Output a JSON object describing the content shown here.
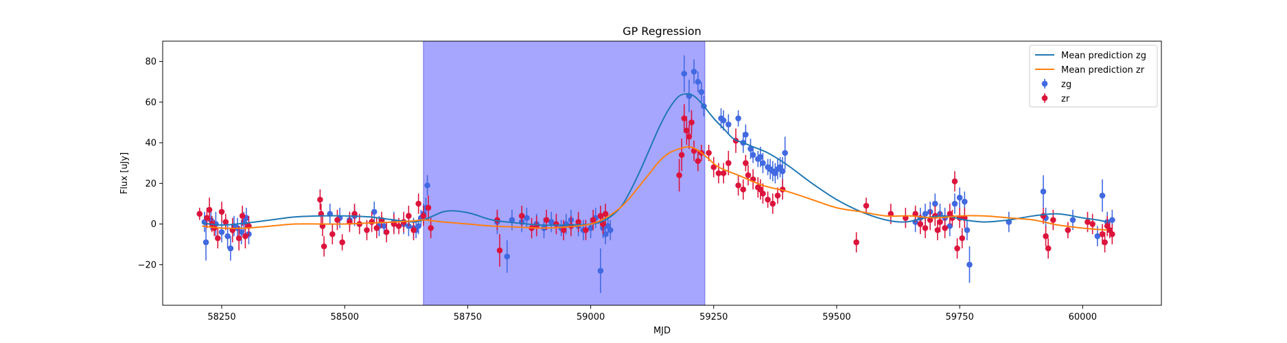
{
  "chart_data": {
    "type": "scatter",
    "title": "GP Regression",
    "xlabel": "MJD",
    "ylabel": "Flux [uJy]",
    "xlim": [
      58130,
      60160
    ],
    "ylim": [
      -40,
      90
    ],
    "xticks": [
      58250,
      58500,
      58750,
      59000,
      59250,
      59500,
      59750,
      60000
    ],
    "yticks": [
      -20,
      0,
      20,
      40,
      60,
      80
    ],
    "grid": false,
    "legend_position": "top-right",
    "shaded_span": {
      "x0": 58660,
      "x1": 59232,
      "color": "#a6a6ff"
    },
    "series": [
      {
        "name": "Mean prediction zg",
        "kind": "line",
        "color": "#1f77b4",
        "x": [
          58210,
          58250,
          58300,
          58350,
          58400,
          58450,
          58500,
          58550,
          58600,
          58640,
          58660,
          58680,
          58700,
          58720,
          58740,
          58760,
          58800,
          58850,
          58900,
          58950,
          59000,
          59030,
          59060,
          59080,
          59100,
          59120,
          59140,
          59160,
          59180,
          59200,
          59215,
          59230,
          59250,
          59270,
          59290,
          59310,
          59330,
          59360,
          59400,
          59450,
          59500,
          59550,
          59600,
          59640,
          59680,
          59720,
          59760,
          59800,
          59850,
          59900,
          59950,
          60000,
          60030,
          60050
        ],
        "y": [
          0.5,
          -0.5,
          0.5,
          2,
          3.5,
          4,
          4,
          3.5,
          2,
          1,
          2,
          4,
          6,
          6.5,
          6,
          5,
          2,
          0.5,
          -0.5,
          -0.5,
          0,
          2,
          8,
          16,
          26,
          37,
          48,
          57,
          63,
          64,
          62,
          58,
          52,
          47,
          42,
          40,
          38,
          35,
          29,
          20,
          12,
          6,
          2,
          1,
          3,
          4,
          2,
          1,
          2,
          4,
          5,
          3,
          2,
          1
        ]
      },
      {
        "name": "Mean prediction zr",
        "kind": "line",
        "color": "#ff7f0e",
        "x": [
          58210,
          58250,
          58300,
          58350,
          58400,
          58450,
          58500,
          58550,
          58600,
          58640,
          58660,
          58700,
          58750,
          58800,
          58850,
          58900,
          58950,
          59000,
          59030,
          59060,
          59080,
          59100,
          59120,
          59140,
          59160,
          59180,
          59200,
          59220,
          59240,
          59260,
          59300,
          59350,
          59400,
          59450,
          59500,
          59550,
          59600,
          59650,
          59700,
          59750,
          59800,
          59850,
          59900,
          59950,
          60000,
          60050
        ],
        "y": [
          -1,
          -2,
          -2,
          -1,
          0,
          0,
          0,
          0.5,
          1,
          1.5,
          2,
          1,
          0,
          -1,
          -1.5,
          -2,
          -1.5,
          0,
          3,
          8,
          13,
          19,
          25,
          31,
          35,
          37,
          38,
          36,
          32,
          28,
          24,
          19,
          16,
          12,
          8,
          6,
          4,
          4,
          3,
          4,
          4,
          3,
          2,
          -0.5,
          -2,
          -3
        ]
      },
      {
        "name": "zg",
        "kind": "errorbar",
        "color": "#4169e1",
        "x": [
          58215,
          58218,
          58228,
          58238,
          58250,
          58262,
          58268,
          58275,
          58282,
          58290,
          58295,
          58300,
          58305,
          58470,
          58490,
          58510,
          58520,
          58560,
          58570,
          58580,
          58600,
          58620,
          58630,
          58640,
          58645,
          58650,
          58655,
          58660,
          58665,
          58668,
          58810,
          58830,
          58840,
          58860,
          58870,
          58890,
          58905,
          58920,
          58940,
          58950,
          58960,
          58975,
          58985,
          59000,
          59010,
          59020,
          59025,
          59030,
          59035,
          59040,
          59190,
          59200,
          59210,
          59218,
          59225,
          59230,
          59265,
          59270,
          59280,
          59300,
          59310,
          59315,
          59325,
          59330,
          59340,
          59345,
          59350,
          59360,
          59365,
          59370,
          59375,
          59380,
          59385,
          59390,
          59395,
          59660,
          59670,
          59680,
          59690,
          59700,
          59710,
          59720,
          59730,
          59740,
          59750,
          59760,
          59765,
          59770,
          59850,
          59920,
          59925,
          59980,
          60030,
          60040,
          60050,
          60060
        ],
        "y": [
          1,
          -9,
          2,
          0,
          -4,
          -6,
          -12,
          -1,
          -2,
          -4,
          1,
          3,
          -5,
          5,
          3,
          2,
          4,
          6,
          -1,
          -1,
          1,
          0,
          -1,
          -2,
          -3,
          -1,
          3,
          5,
          8,
          19,
          1,
          -16,
          2,
          1,
          3,
          0,
          -2,
          1,
          -2,
          0,
          2,
          -1,
          -3,
          -2,
          3,
          -23,
          -2,
          -5,
          -1,
          -3,
          74,
          63,
          75,
          70,
          65,
          58,
          52,
          51,
          49,
          52,
          40,
          44,
          37,
          34,
          32,
          33,
          30,
          28,
          27,
          26,
          25,
          27,
          28,
          26,
          35,
          1,
          3,
          5,
          6,
          10,
          5,
          3,
          -1,
          10,
          13,
          11,
          -3,
          -20,
          1,
          16,
          3,
          2,
          -6,
          14,
          1,
          2
        ],
        "err": [
          5,
          9,
          5,
          6,
          5,
          6,
          6,
          5,
          5,
          6,
          5,
          5,
          5,
          5,
          5,
          4,
          5,
          5,
          5,
          4,
          5,
          5,
          5,
          5,
          4,
          4,
          4,
          5,
          5,
          5,
          6,
          8,
          5,
          5,
          5,
          5,
          5,
          5,
          4,
          5,
          5,
          5,
          5,
          5,
          5,
          11,
          5,
          5,
          5,
          5,
          9,
          8,
          6,
          5,
          5,
          5,
          5,
          5,
          5,
          4,
          5,
          5,
          5,
          4,
          4,
          5,
          5,
          4,
          5,
          5,
          5,
          5,
          5,
          7,
          8,
          5,
          5,
          5,
          5,
          5,
          5,
          5,
          5,
          5,
          5,
          5,
          5,
          9,
          5,
          8,
          5,
          5,
          5,
          8,
          5,
          5
        ]
      },
      {
        "name": "zr",
        "kind": "errorbar",
        "color": "#dc143c",
        "x": [
          58205,
          58220,
          58225,
          58230,
          58235,
          58242,
          58250,
          58258,
          58272,
          58285,
          58292,
          58298,
          58305,
          58450,
          58452,
          58455,
          58458,
          58475,
          58485,
          58495,
          58510,
          58520,
          58530,
          58545,
          58555,
          58565,
          58575,
          58585,
          58600,
          58610,
          58620,
          58630,
          58640,
          58650,
          58660,
          58670,
          58675,
          58810,
          58815,
          58860,
          58880,
          58890,
          58910,
          58930,
          58945,
          58960,
          58975,
          58990,
          59005,
          59020,
          59025,
          59030,
          59180,
          59185,
          59190,
          59195,
          59200,
          59205,
          59210,
          59218,
          59225,
          59240,
          59250,
          59260,
          59270,
          59280,
          59295,
          59300,
          59310,
          59315,
          59320,
          59330,
          59340,
          59345,
          59350,
          59360,
          59370,
          59380,
          59390,
          59540,
          59560,
          59610,
          59640,
          59660,
          59670,
          59680,
          59690,
          59700,
          59705,
          59710,
          59720,
          59730,
          59735,
          59740,
          59745,
          59750,
          59755,
          59760,
          59920,
          59925,
          59930,
          59940,
          59970,
          60010,
          60020,
          60040,
          60045,
          60050,
          60055,
          60060
        ],
        "y": [
          5,
          3,
          7,
          0,
          -2,
          -7,
          6,
          1,
          -3,
          -7,
          4,
          -6,
          -1,
          12,
          5,
          -1,
          -11,
          -5,
          2,
          -9,
          1,
          5,
          0,
          -3,
          1,
          -2,
          2,
          -4,
          0,
          -1,
          1,
          4,
          -3,
          10,
          4,
          8,
          -2,
          2,
          -13,
          4,
          -2,
          -1,
          2,
          0,
          -3,
          -1,
          1,
          -3,
          2,
          4,
          0,
          5,
          24,
          34,
          52,
          46,
          43,
          50,
          36,
          31,
          35,
          35,
          28,
          25,
          25,
          30,
          41,
          19,
          17,
          30,
          24,
          22,
          18,
          17,
          15,
          12,
          10,
          14,
          17,
          -9,
          9,
          5,
          3,
          5,
          0,
          -2,
          2,
          4,
          -3,
          1,
          -2,
          5,
          3,
          21,
          -12,
          3,
          -7,
          3,
          4,
          -6,
          -12,
          2,
          -3,
          1,
          0,
          -5,
          -9,
          -1,
          -3,
          -5
        ],
        "err": [
          3,
          5,
          6,
          4,
          4,
          5,
          5,
          4,
          6,
          6,
          5,
          6,
          5,
          5,
          5,
          5,
          5,
          5,
          5,
          4,
          5,
          5,
          5,
          5,
          5,
          5,
          4,
          5,
          5,
          4,
          5,
          5,
          5,
          5,
          5,
          6,
          5,
          5,
          8,
          5,
          5,
          5,
          5,
          5,
          5,
          5,
          5,
          5,
          5,
          5,
          5,
          5,
          8,
          8,
          7,
          7,
          6,
          6,
          5,
          5,
          4,
          4,
          5,
          5,
          5,
          6,
          6,
          5,
          5,
          4,
          5,
          5,
          5,
          5,
          5,
          4,
          5,
          4,
          5,
          5,
          4,
          5,
          5,
          4,
          5,
          5,
          5,
          5,
          5,
          5,
          5,
          5,
          4,
          5,
          5,
          5,
          5,
          5,
          4,
          5,
          5,
          5,
          4,
          5,
          5,
          5,
          5,
          5,
          4,
          5
        ]
      }
    ]
  }
}
